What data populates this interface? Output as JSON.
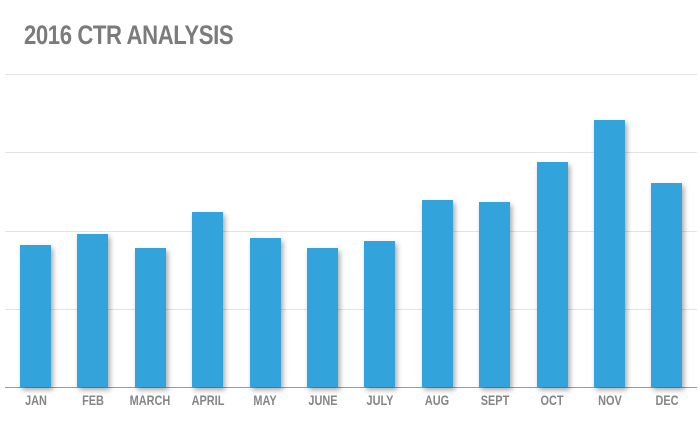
{
  "header": {
    "title": "2016 CTR ANALYSIS"
  },
  "colors": {
    "bar": "#33a3dc",
    "title": "#7b7b7b",
    "label": "#858585",
    "grid": "#e3e3e3"
  },
  "chart_data": {
    "type": "bar",
    "title": "2016 CTR ANALYSIS",
    "xlabel": "",
    "ylabel": "",
    "categories": [
      "JAN",
      "FEB",
      "MARCH",
      "APRIL",
      "MAY",
      "JUNE",
      "JULY",
      "AUG",
      "SEPT",
      "OCT",
      "NOV",
      "DEC"
    ],
    "values": [
      1.82,
      1.96,
      1.78,
      2.24,
      1.9,
      1.78,
      1.87,
      2.39,
      2.37,
      2.87,
      3.41,
      2.61
    ],
    "ylim": [
      0,
      4
    ],
    "yticks": [
      0,
      1,
      2,
      3,
      4
    ],
    "ytick_labels_shown": false,
    "grid": true,
    "legend": null,
    "note": "No y-axis values shown; values are relative heights in gridline units."
  }
}
